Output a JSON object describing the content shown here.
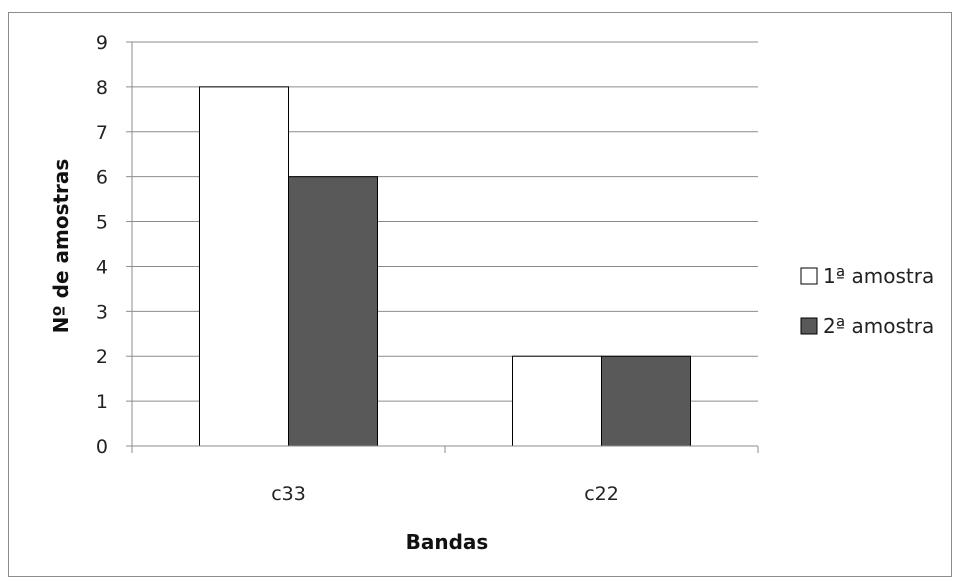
{
  "chart_data": {
    "type": "bar",
    "title": "",
    "xlabel": "Bandas",
    "ylabel": "Nº de amostras",
    "categories": [
      "c33",
      "c22"
    ],
    "series": [
      {
        "name": "1ª amostra",
        "values": [
          8,
          2
        ],
        "color": "#ffffff"
      },
      {
        "name": "2ª amostra",
        "values": [
          6,
          2
        ],
        "color": "#595959"
      }
    ],
    "ylim": [
      0,
      9
    ],
    "yticks": [
      0,
      1,
      2,
      3,
      4,
      5,
      6,
      7,
      8,
      9
    ],
    "grid": true,
    "legend_position": "right"
  }
}
